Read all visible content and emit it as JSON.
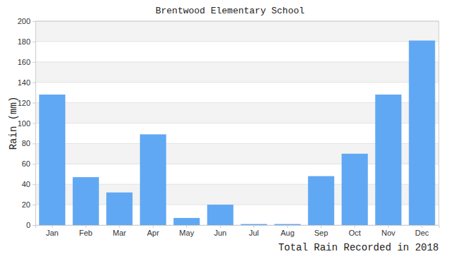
{
  "chart_data": {
    "type": "bar",
    "title": "Brentwood Elementary School",
    "y_label": "Rain (mm)",
    "x_label": "Total Rain Recorded in 2018",
    "categories": [
      "Jan",
      "Feb",
      "Mar",
      "Apr",
      "May",
      "Jun",
      "Jul",
      "Aug",
      "Sep",
      "Oct",
      "Nov",
      "Dec"
    ],
    "values": [
      128,
      47,
      32,
      89,
      7,
      20,
      1,
      1,
      48,
      70,
      128,
      181
    ],
    "color": "#60a8f4",
    "ylim": [
      0,
      200
    ],
    "yticks": [
      0,
      20,
      40,
      60,
      80,
      100,
      120,
      140,
      160,
      180,
      200
    ],
    "grid": true
  }
}
